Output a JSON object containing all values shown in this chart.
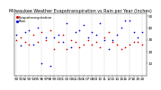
{
  "title": "Milwaukee Weather Evapotranspiration vs Rain per Year (Inches)",
  "background_color": "#ffffff",
  "grid_color": "#aaaaaa",
  "years": [
    1990,
    1991,
    1992,
    1993,
    1994,
    1995,
    1996,
    1997,
    1998,
    1999,
    2000,
    2001,
    2002,
    2003,
    2004,
    2005,
    2006,
    2007,
    2008,
    2009,
    2010,
    2011,
    2012,
    2013,
    2014,
    2015,
    2016,
    2017,
    2018,
    2019,
    2020
  ],
  "rain": [
    34.0,
    25.0,
    36.0,
    38.0,
    26.0,
    40.0,
    10.0,
    32.0,
    8.0,
    32.0,
    34.0,
    28.0,
    44.0,
    24.0,
    36.0,
    38.0,
    42.0,
    32.0,
    36.0,
    34.0,
    44.0,
    30.0,
    22.0,
    30.0,
    34.0,
    40.0,
    46.0,
    46.0,
    36.0,
    32.0,
    36.0
  ],
  "et": [
    30.0,
    32.0,
    28.0,
    26.0,
    34.0,
    28.0,
    36.0,
    30.0,
    38.0,
    22.0,
    28.0,
    34.0,
    22.0,
    30.0,
    28.0,
    24.0,
    26.0,
    30.0,
    26.0,
    28.0,
    24.0,
    32.0,
    36.0,
    28.0,
    26.0,
    22.0,
    24.0,
    26.0,
    28.0,
    28.0,
    26.0
  ],
  "rain_color": "#0000dd",
  "et_color": "#dd0000",
  "ylim": [
    0,
    52
  ],
  "xlim": [
    1989.5,
    2021
  ],
  "tick_fontsize": 3.0,
  "title_fontsize": 3.5,
  "legend_fontsize": 2.8,
  "marker_size": 1.5,
  "vline_years": [
    1990,
    1993,
    1996,
    1999,
    2002,
    2005,
    2008,
    2011,
    2014,
    2017,
    2020
  ],
  "ytick_vals": [
    10,
    20,
    30,
    40,
    50
  ],
  "ytick_labels": [
    "10",
    "20",
    "30",
    "40",
    "50"
  ],
  "legend_labels": [
    "Evapotranspiration",
    "Rain"
  ]
}
